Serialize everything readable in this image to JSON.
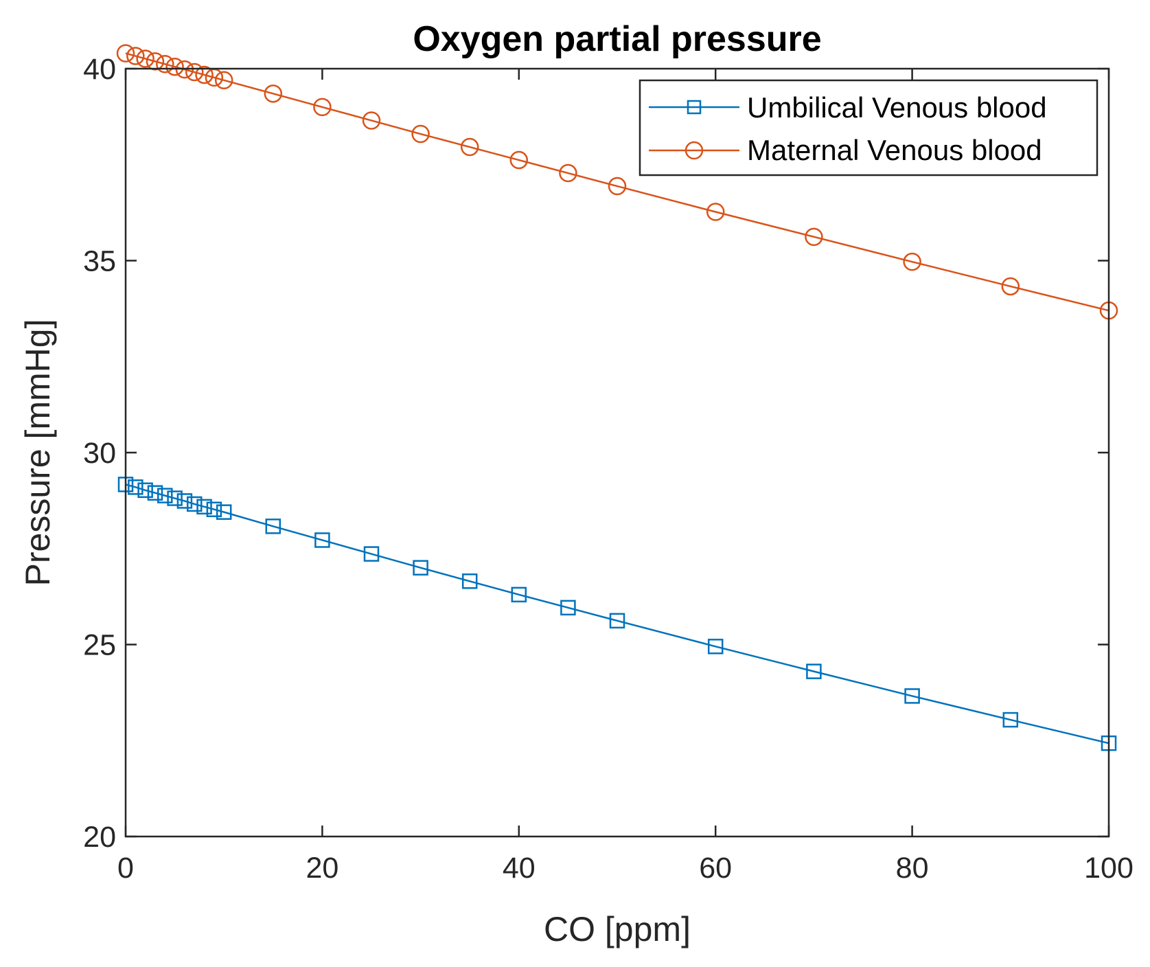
{
  "chart_data": {
    "type": "line",
    "title": "Oxygen partial pressure",
    "xlabel": "CO [ppm]",
    "ylabel": "Pressure [mmHg]",
    "xlim": [
      0,
      100
    ],
    "ylim": [
      20,
      40
    ],
    "xticks": [
      0,
      20,
      40,
      60,
      80,
      100
    ],
    "yticks": [
      20,
      25,
      30,
      35,
      40
    ],
    "xtick_labels": [
      "0",
      "20",
      "40",
      "60",
      "80",
      "100"
    ],
    "ytick_labels": [
      "20",
      "25",
      "30",
      "35",
      "40"
    ],
    "grid": false,
    "legend_position": "top-right",
    "x": [
      0,
      1,
      2,
      3,
      4,
      5,
      6,
      7,
      8,
      9,
      10,
      15,
      20,
      25,
      30,
      35,
      40,
      45,
      50,
      60,
      70,
      80,
      90,
      100
    ],
    "series": [
      {
        "name": "Umbilical Venous blood",
        "color": "#0072BD",
        "marker": "square",
        "values": [
          29.17,
          29.1,
          29.02,
          28.95,
          28.88,
          28.81,
          28.74,
          28.66,
          28.59,
          28.52,
          28.45,
          28.08,
          27.72,
          27.36,
          27.0,
          26.65,
          26.3,
          25.96,
          25.62,
          24.95,
          24.3,
          23.66,
          23.04,
          22.43
        ]
      },
      {
        "name": "Maternal Venous blood",
        "color": "#D95319",
        "marker": "circle",
        "values": [
          40.4,
          40.33,
          40.26,
          40.19,
          40.12,
          40.05,
          39.98,
          39.91,
          39.84,
          39.77,
          39.7,
          39.35,
          39.0,
          38.65,
          38.3,
          37.96,
          37.62,
          37.28,
          36.94,
          36.27,
          35.62,
          34.97,
          34.33,
          33.7
        ]
      }
    ]
  }
}
